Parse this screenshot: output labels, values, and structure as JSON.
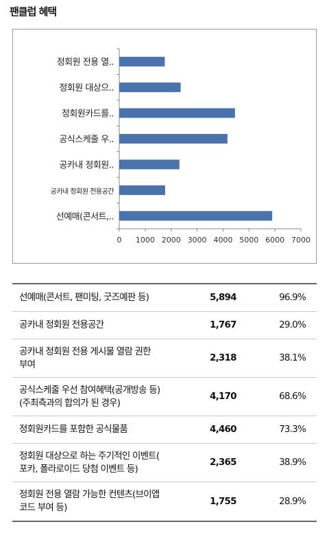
{
  "header": {
    "title": "팬클럽 혜택"
  },
  "chart_data": {
    "type": "bar",
    "orientation": "horizontal",
    "categories": [
      "정회원 전용 열..",
      "정회원 대상으..",
      "정회원카드를..",
      "공식스케줄 우..",
      "공카내 정회원..",
      "공카내 정회원 전용공간",
      "선예매(콘서트,.."
    ],
    "values": [
      1755,
      2365,
      4460,
      4170,
      2318,
      1767,
      5894
    ],
    "xlim": [
      0,
      7000
    ],
    "xticks": [
      "0",
      "1000",
      "2000",
      "3000",
      "4000",
      "5000",
      "6000",
      "7000"
    ],
    "bar_color": "#4a72ad",
    "grid": false,
    "title": "",
    "xlabel": "",
    "ylabel": ""
  },
  "table": {
    "rows": [
      {
        "label": "선예매(콘서트, 팬미팅, 굿즈예판 등)",
        "count": "5,894",
        "pct": "96.9%"
      },
      {
        "label": "공카내 정회원 전용공간",
        "count": "1,767",
        "pct": "29.0%"
      },
      {
        "label": "공카내 정회원 전용 게시물 열람 권한\n부여",
        "count": "2,318",
        "pct": "38.1%"
      },
      {
        "label": "공식스케줄 우선 참여혜택(공개방송 등)\n(주최측과의 합의가 된 경우)",
        "count": "4,170",
        "pct": "68.6%"
      },
      {
        "label": "정회원카드를 포함한 공식물품",
        "count": "4,460",
        "pct": "73.3%"
      },
      {
        "label": "정회원 대상으로 하는 주기적인 이벤트(\n포카, 폴라로이드 당첨 이벤트 등)",
        "count": "2,365",
        "pct": "38.9%"
      },
      {
        "label": "정회원 전용 열람 가능한 컨텐츠(브이앱\n코드 부여 등)",
        "count": "1,755",
        "pct": "28.9%"
      }
    ]
  }
}
